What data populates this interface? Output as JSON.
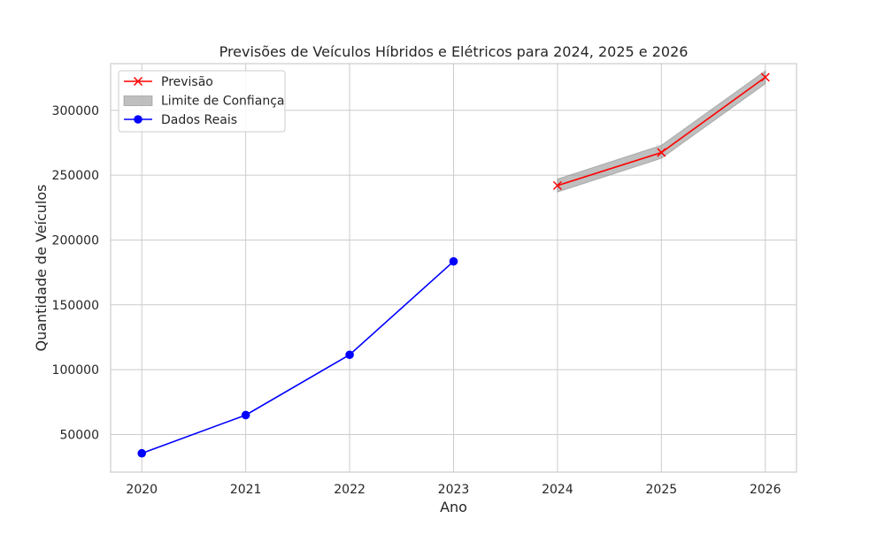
{
  "chart_data": {
    "type": "line",
    "title": "Previsões de Veículos Híbridos e Elétricos para 2024, 2025 e 2026",
    "xlabel": "Ano",
    "ylabel": "Quantidade de Veículos",
    "xlim": [
      2019.7,
      2026.3
    ],
    "ylim": [
      21000,
      336000
    ],
    "x_ticks": [
      "2020",
      "2021",
      "2022",
      "2023",
      "2024",
      "2025",
      "2026"
    ],
    "y_ticks": [
      "50000",
      "100000",
      "150000",
      "200000",
      "250000",
      "300000"
    ],
    "grid": true,
    "legend_position": "top-left",
    "series": [
      {
        "name": "Previsão",
        "color": "#ff0000",
        "marker": "x",
        "x": [
          2024,
          2025,
          2026
        ],
        "y": [
          242000,
          267500,
          325500
        ]
      },
      {
        "name": "Limite de Confiança",
        "type": "band",
        "color": "#808080",
        "x": [
          2024,
          2025,
          2026
        ],
        "lower": [
          237000,
          263000,
          320500
        ],
        "upper": [
          247000,
          273000,
          330500
        ]
      },
      {
        "name": "Dados Reais",
        "color": "#0000ff",
        "marker": "o",
        "x": [
          2020,
          2021,
          2022,
          2023
        ],
        "y": [
          35500,
          65000,
          111500,
          183500
        ]
      }
    ]
  }
}
